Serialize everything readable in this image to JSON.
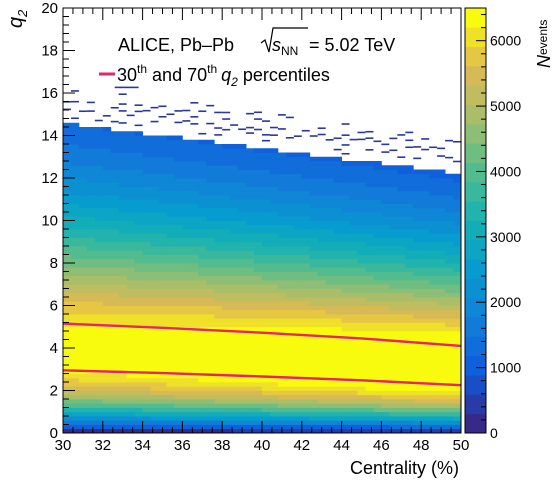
{
  "chart_data": {
    "type": "heatmap",
    "title": "ALICE, Pb–Pb",
    "energy_label": {
      "symbol": "s",
      "subscript": "NN",
      "value": "= 5.02 TeV"
    },
    "legend": {
      "line_color": "#e8226e",
      "text_pre": "30",
      "sup1": "th",
      "text_mid": " and 70",
      "sup2": "th",
      "q_symbol": "q",
      "q_sub": "2",
      "text_post": " percentiles"
    },
    "xlabel": "Centrality (%)",
    "ylabel": {
      "symbol": "q",
      "subscript": "2"
    },
    "zlabel": {
      "symbol": "N",
      "subscript": "events"
    },
    "xlim": [
      30,
      50
    ],
    "ylim": [
      0,
      20
    ],
    "zlim": [
      0,
      6500
    ],
    "x_ticks": [
      "30",
      "32",
      "34",
      "36",
      "38",
      "40",
      "42",
      "44",
      "46",
      "48",
      "50"
    ],
    "y_ticks": [
      "0",
      "2",
      "4",
      "6",
      "8",
      "10",
      "12",
      "14",
      "16",
      "18",
      "20"
    ],
    "z_ticks": [
      "0",
      "1000",
      "2000",
      "3000",
      "4000",
      "5000",
      "6000"
    ],
    "percentile_lines": [
      {
        "name": "70th percentile",
        "x": [
          30,
          35,
          40,
          45,
          50
        ],
        "y": [
          5.15,
          4.95,
          4.72,
          4.45,
          4.1
        ]
      },
      {
        "name": "30th percentile",
        "x": [
          30,
          35,
          40,
          45,
          50
        ],
        "y": [
          2.95,
          2.82,
          2.66,
          2.48,
          2.25
        ]
      }
    ],
    "distribution": {
      "peak_q2_at_30": 3.9,
      "peak_q2_at_50": 3.1,
      "max_events": 6400,
      "upper_edge_q2_at_30": 14.6,
      "upper_edge_q2_at_50": 12.2
    }
  }
}
